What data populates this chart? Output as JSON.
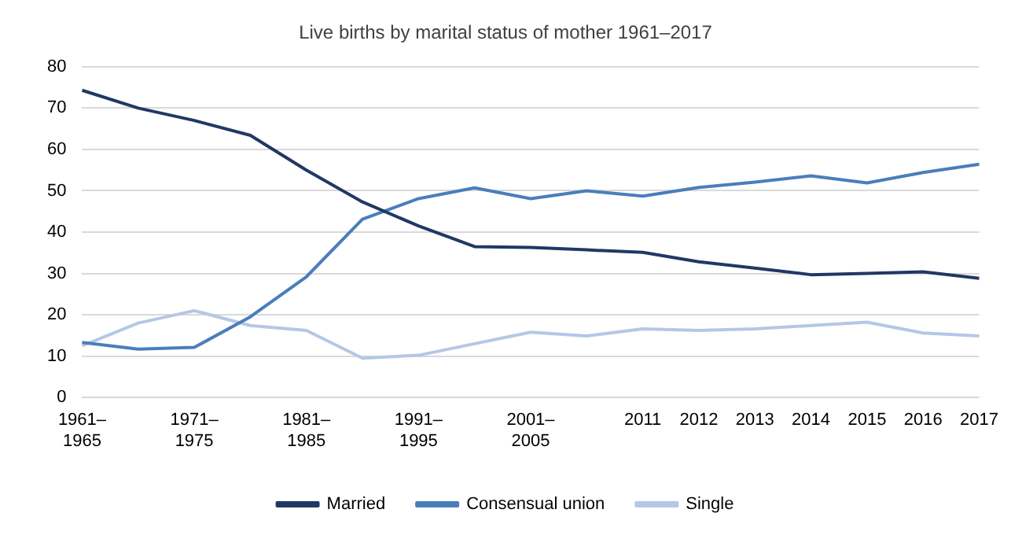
{
  "chart_data": {
    "type": "line",
    "title": "Live births by marital status of mother 1961–2017",
    "categories": [
      "1961–1965",
      null,
      "1971–1975",
      null,
      "1981–1985",
      null,
      "1991–1995",
      null,
      "2001–2005",
      null,
      "2011",
      "2012",
      "2013",
      "2014",
      "2015",
      "2016",
      "2017"
    ],
    "series": [
      {
        "name": "Married",
        "color": "#203864",
        "values": [
          74.3,
          70,
          67,
          63.4,
          55,
          47.3,
          41.5,
          36.5,
          36.3,
          35.7,
          35.1,
          32.8,
          31.3,
          29.7,
          30,
          30.4,
          28.8
        ]
      },
      {
        "name": "Consensual union",
        "color": "#4a7ebb",
        "values": [
          13.3,
          11.7,
          12.1,
          19.5,
          29.2,
          43.1,
          48.1,
          50.7,
          48.1,
          50,
          48.7,
          50.8,
          52.1,
          53.6,
          51.9,
          54.4,
          56.4
        ]
      },
      {
        "name": "Single",
        "color": "#b4c7e7",
        "values": [
          12.5,
          18,
          21,
          17.4,
          16.2,
          9.5,
          10.2,
          13,
          15.8,
          14.9,
          16.6,
          16.2,
          16.6,
          17.4,
          18.2,
          15.6,
          14.9
        ]
      }
    ],
    "ylim": [
      0,
      80
    ],
    "yticks": [
      0,
      10,
      20,
      30,
      40,
      50,
      60,
      70,
      80
    ],
    "grid": "y",
    "legend": "bottom",
    "marker": "none",
    "line_style": "solid"
  }
}
